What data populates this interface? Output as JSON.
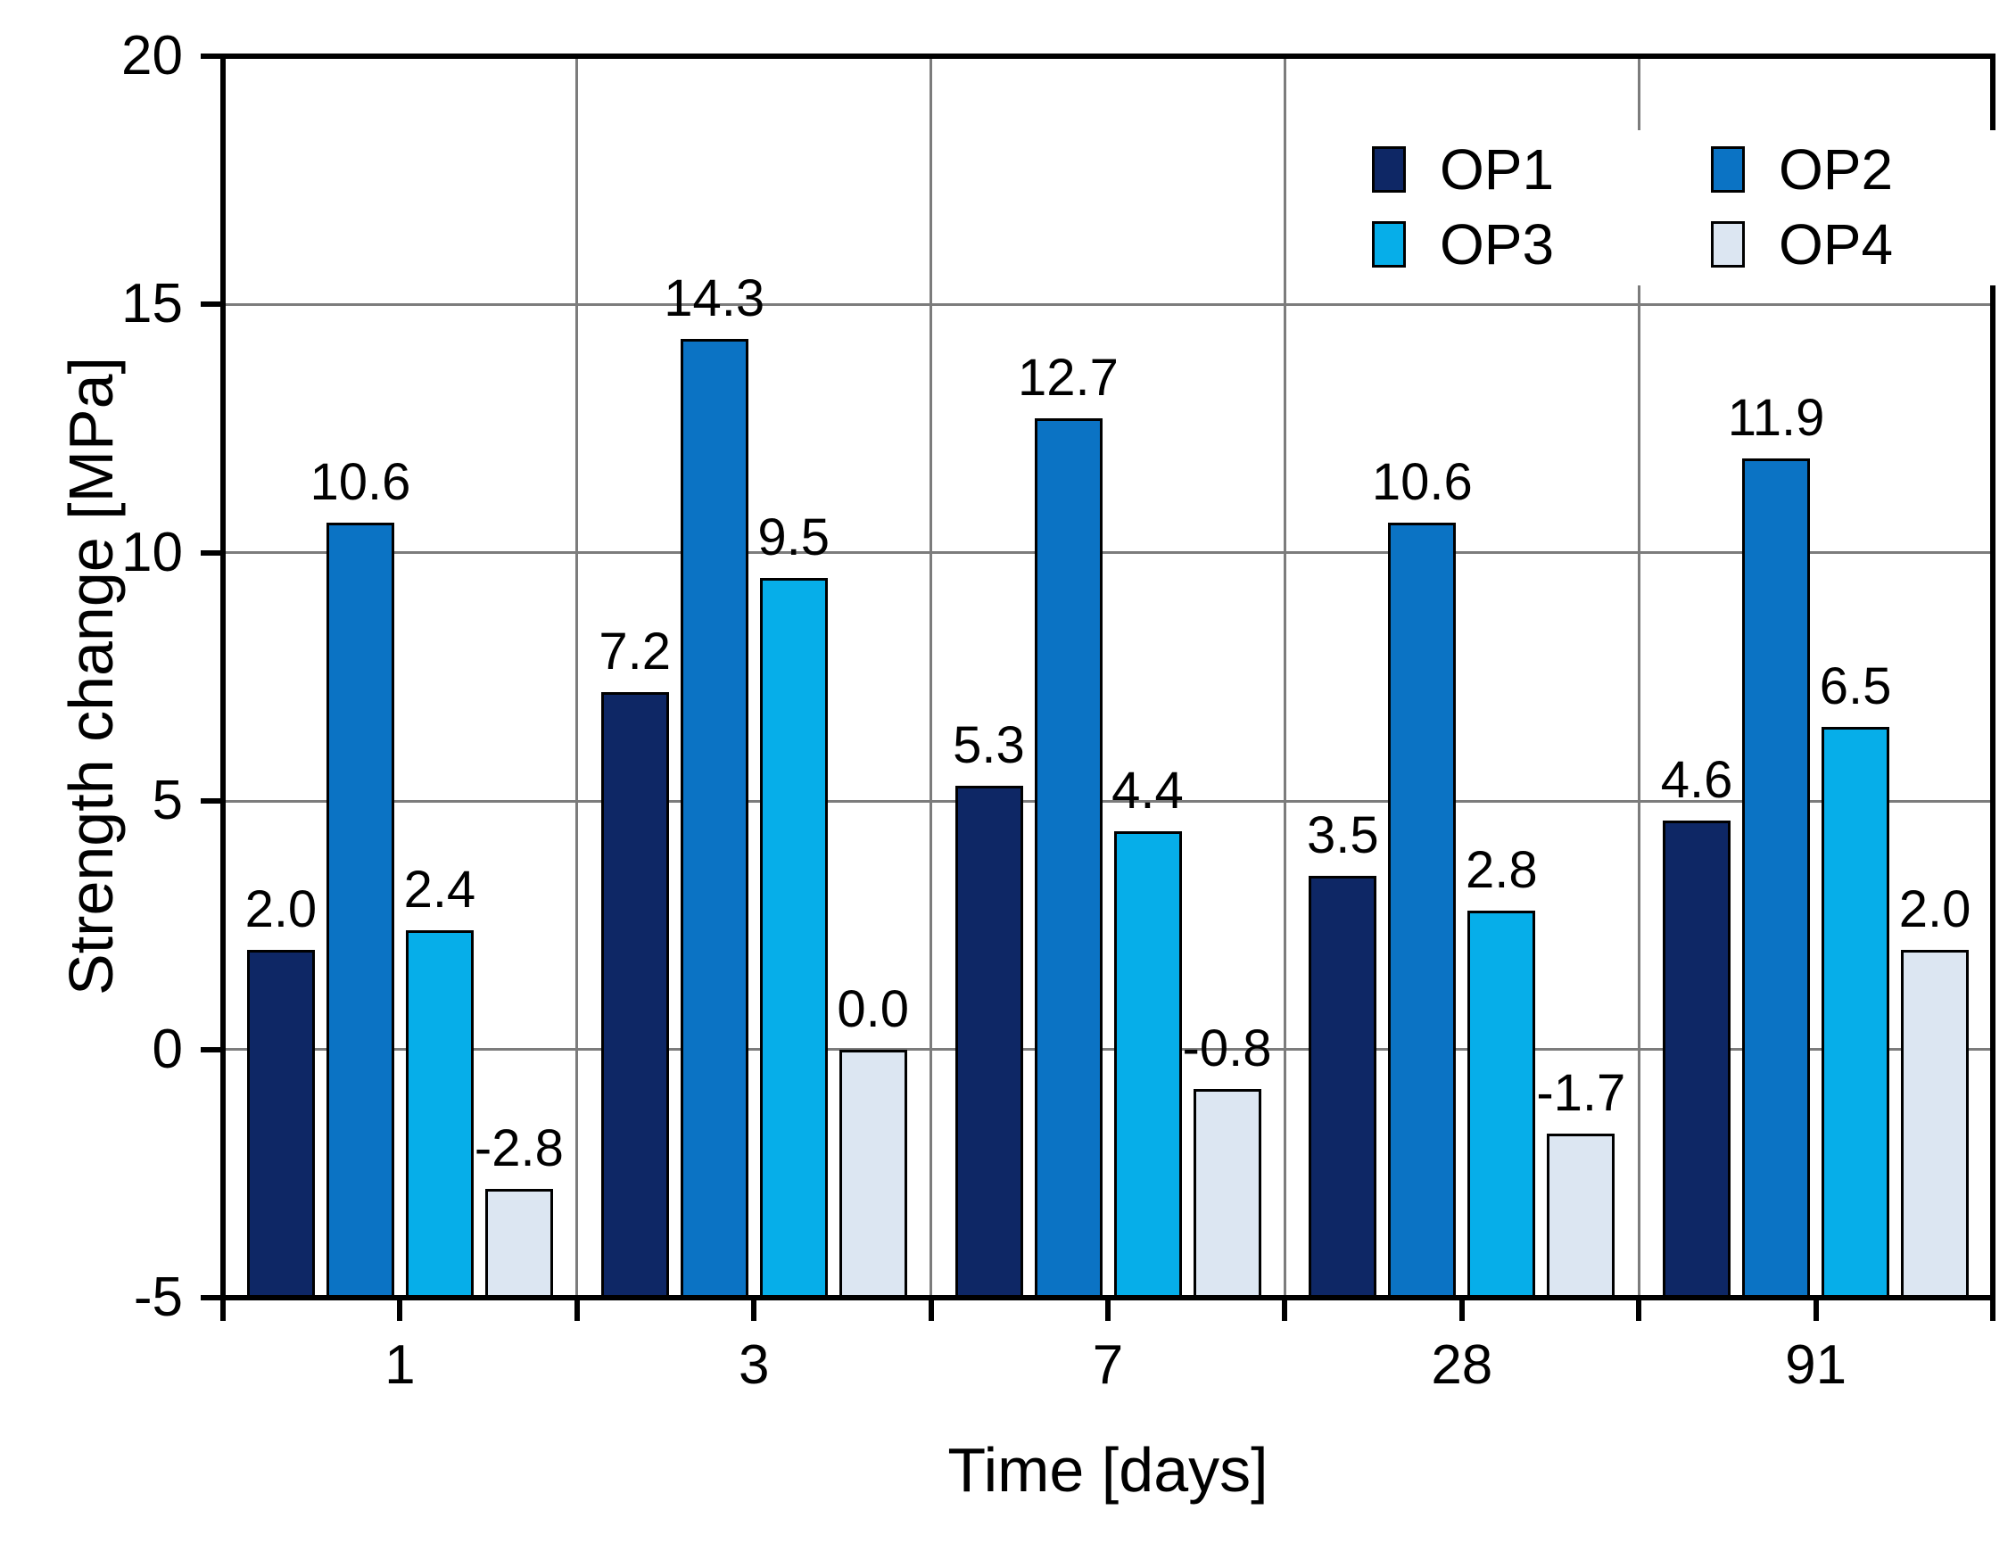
{
  "chart_data": {
    "type": "bar",
    "title": "",
    "xlabel": "Time [days]",
    "ylabel": "Strength change [MPa]",
    "categories": [
      "1",
      "3",
      "7",
      "28",
      "91"
    ],
    "series": [
      {
        "name": "OP1",
        "color": "#0E2765",
        "values": [
          2.0,
          7.2,
          5.3,
          3.5,
          4.6
        ]
      },
      {
        "name": "OP2",
        "color": "#0B73C4",
        "values": [
          10.6,
          14.3,
          12.7,
          10.6,
          11.9
        ]
      },
      {
        "name": "OP3",
        "color": "#06AEE9",
        "values": [
          2.4,
          9.5,
          4.4,
          2.8,
          6.5
        ]
      },
      {
        "name": "OP4",
        "color": "#DCE6F2",
        "values": [
          -2.8,
          0.0,
          -0.8,
          -1.7,
          2.0
        ]
      }
    ],
    "ylim": [
      -5,
      20
    ],
    "ytick_step": 5,
    "bar_base": -5,
    "data_labels_decimals": 1,
    "grid": true,
    "legend_position": "top-right",
    "legend_rows": [
      [
        "OP1",
        "OP2"
      ],
      [
        "OP3",
        "OP4"
      ]
    ]
  },
  "colors": {
    "background": "#FFFFFF",
    "gridline": "#7C7C7C",
    "axis": "#000000",
    "text": "#000000"
  }
}
